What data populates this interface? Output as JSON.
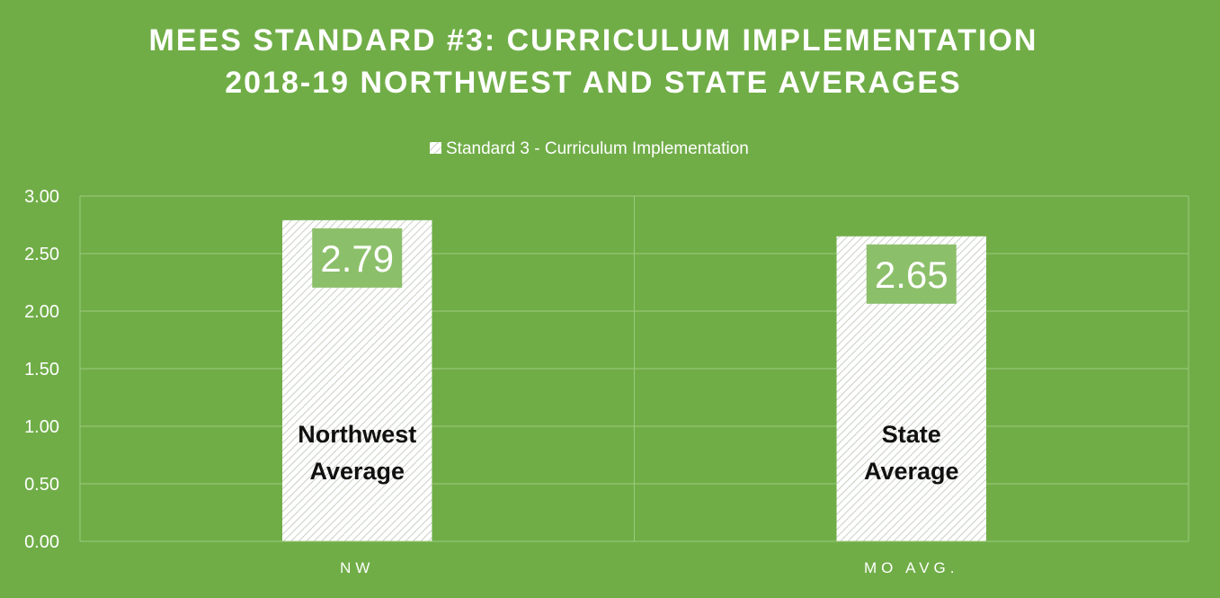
{
  "colors": {
    "background": "#70ad47",
    "gridline": "#9ccc7e",
    "bar_fill": "#ffffff",
    "bar_hatch": "#c9cfc4",
    "value_box": "#8cbf6a",
    "text_light": "#ffffff",
    "text_dark": "#111111"
  },
  "chart_data": {
    "type": "bar",
    "title_lines": [
      "MEES STANDARD #3: CURRICULUM IMPLEMENTATION",
      "2018-19 NORTHWEST AND STATE AVERAGES"
    ],
    "legend": {
      "label": "Standard 3 - Curriculum Implementation",
      "position": "top"
    },
    "categories": [
      "NW",
      "MO AVG."
    ],
    "series": [
      {
        "name": "Standard 3 - Curriculum Implementation",
        "values": [
          2.79,
          2.65
        ]
      }
    ],
    "data_labels": [
      "2.79",
      "2.65"
    ],
    "bar_annotations": [
      [
        "Northwest",
        "Average"
      ],
      [
        "State",
        "Average"
      ]
    ],
    "ylim": [
      0,
      3
    ],
    "yticks": [
      "0.00",
      "0.50",
      "1.00",
      "1.50",
      "2.00",
      "2.50",
      "3.00"
    ],
    "grid": true,
    "xlabel": "",
    "ylabel": ""
  }
}
